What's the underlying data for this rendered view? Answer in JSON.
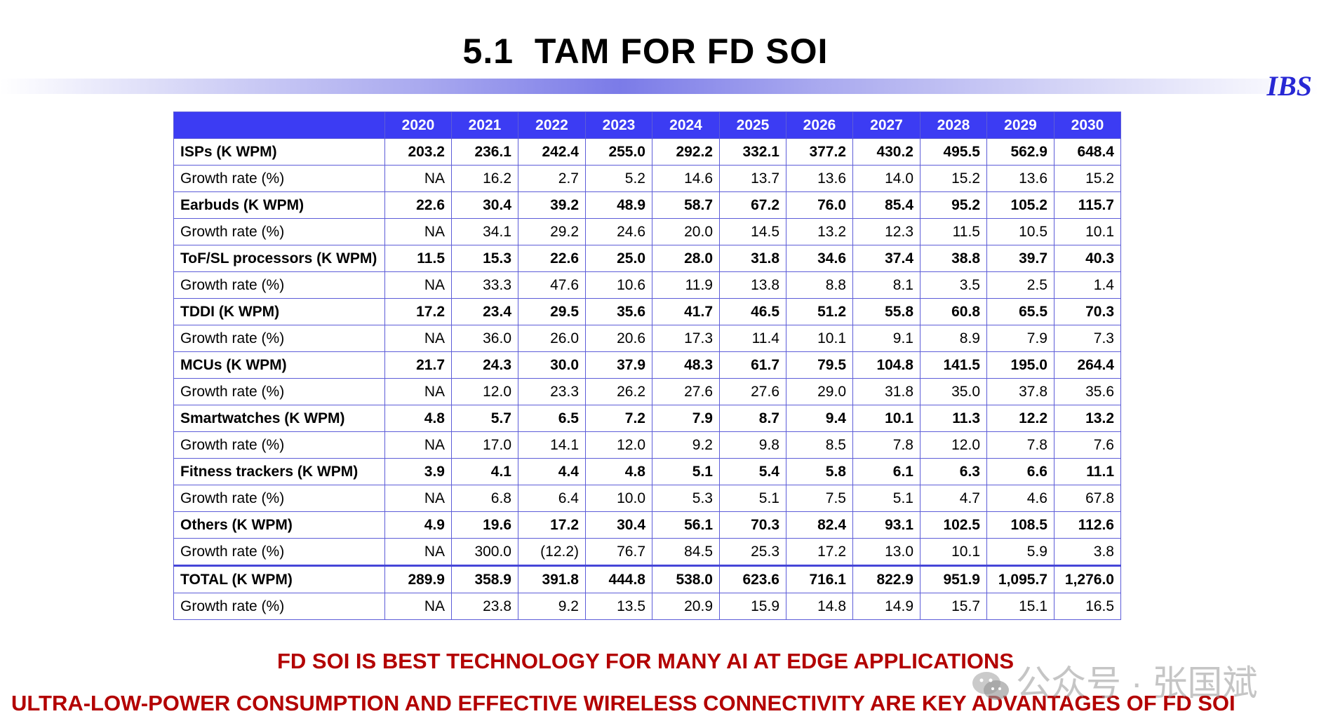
{
  "title": "5.1  TAM FOR FD SOI",
  "logo": "IBS",
  "table": {
    "years": [
      "2020",
      "2021",
      "2022",
      "2023",
      "2024",
      "2025",
      "2026",
      "2027",
      "2028",
      "2029",
      "2030"
    ],
    "rows": [
      {
        "label": "ISPs (K WPM)",
        "kind": "metric",
        "values": [
          "203.2",
          "236.1",
          "242.4",
          "255.0",
          "292.2",
          "332.1",
          "377.2",
          "430.2",
          "495.5",
          "562.9",
          "648.4"
        ]
      },
      {
        "label": "Growth rate (%)",
        "kind": "growth",
        "values": [
          "NA",
          "16.2",
          "2.7",
          "5.2",
          "14.6",
          "13.7",
          "13.6",
          "14.0",
          "15.2",
          "13.6",
          "15.2"
        ]
      },
      {
        "label": "Earbuds (K WPM)",
        "kind": "metric",
        "values": [
          "22.6",
          "30.4",
          "39.2",
          "48.9",
          "58.7",
          "67.2",
          "76.0",
          "85.4",
          "95.2",
          "105.2",
          "115.7"
        ]
      },
      {
        "label": "Growth rate (%)",
        "kind": "growth",
        "values": [
          "NA",
          "34.1",
          "29.2",
          "24.6",
          "20.0",
          "14.5",
          "13.2",
          "12.3",
          "11.5",
          "10.5",
          "10.1"
        ]
      },
      {
        "label": "ToF/SL processors (K WPM)",
        "kind": "metric",
        "values": [
          "11.5",
          "15.3",
          "22.6",
          "25.0",
          "28.0",
          "31.8",
          "34.6",
          "37.4",
          "38.8",
          "39.7",
          "40.3"
        ]
      },
      {
        "label": "Growth rate (%)",
        "kind": "growth",
        "values": [
          "NA",
          "33.3",
          "47.6",
          "10.6",
          "11.9",
          "13.8",
          "8.8",
          "8.1",
          "3.5",
          "2.5",
          "1.4"
        ]
      },
      {
        "label": "TDDI (K WPM)",
        "kind": "metric",
        "values": [
          "17.2",
          "23.4",
          "29.5",
          "35.6",
          "41.7",
          "46.5",
          "51.2",
          "55.8",
          "60.8",
          "65.5",
          "70.3"
        ]
      },
      {
        "label": "Growth rate (%)",
        "kind": "growth",
        "values": [
          "NA",
          "36.0",
          "26.0",
          "20.6",
          "17.3",
          "11.4",
          "10.1",
          "9.1",
          "8.9",
          "7.9",
          "7.3"
        ]
      },
      {
        "label": "MCUs (K WPM)",
        "kind": "metric",
        "values": [
          "21.7",
          "24.3",
          "30.0",
          "37.9",
          "48.3",
          "61.7",
          "79.5",
          "104.8",
          "141.5",
          "195.0",
          "264.4"
        ]
      },
      {
        "label": "Growth rate (%)",
        "kind": "growth",
        "values": [
          "NA",
          "12.0",
          "23.3",
          "26.2",
          "27.6",
          "27.6",
          "29.0",
          "31.8",
          "35.0",
          "37.8",
          "35.6"
        ]
      },
      {
        "label": "Smartwatches (K WPM)",
        "kind": "metric",
        "values": [
          "4.8",
          "5.7",
          "6.5",
          "7.2",
          "7.9",
          "8.7",
          "9.4",
          "10.1",
          "11.3",
          "12.2",
          "13.2"
        ]
      },
      {
        "label": "Growth rate (%)",
        "kind": "growth",
        "values": [
          "NA",
          "17.0",
          "14.1",
          "12.0",
          "9.2",
          "9.8",
          "8.5",
          "7.8",
          "12.0",
          "7.8",
          "7.6"
        ]
      },
      {
        "label": "Fitness trackers (K WPM)",
        "kind": "metric",
        "values": [
          "3.9",
          "4.1",
          "4.4",
          "4.8",
          "5.1",
          "5.4",
          "5.8",
          "6.1",
          "6.3",
          "6.6",
          "11.1"
        ]
      },
      {
        "label": "Growth rate (%)",
        "kind": "growth",
        "values": [
          "NA",
          "6.8",
          "6.4",
          "10.0",
          "5.3",
          "5.1",
          "7.5",
          "5.1",
          "4.7",
          "4.6",
          "67.8"
        ]
      },
      {
        "label": "Others (K WPM)",
        "kind": "metric",
        "values": [
          "4.9",
          "19.6",
          "17.2",
          "30.4",
          "56.1",
          "70.3",
          "82.4",
          "93.1",
          "102.5",
          "108.5",
          "112.6"
        ]
      },
      {
        "label": "Growth rate (%)",
        "kind": "growth",
        "values": [
          "NA",
          "300.0",
          "(12.2)",
          "76.7",
          "84.5",
          "25.3",
          "17.2",
          "13.0",
          "10.1",
          "5.9",
          "3.8"
        ]
      },
      {
        "label": "TOTAL (K WPM)",
        "kind": "total",
        "values": [
          "289.9",
          "358.9",
          "391.8",
          "444.8",
          "538.0",
          "623.6",
          "716.1",
          "822.9",
          "951.9",
          "1,095.7",
          "1,276.0"
        ]
      },
      {
        "label": "Growth rate (%)",
        "kind": "growth",
        "values": [
          "NA",
          "23.8",
          "9.2",
          "13.5",
          "20.9",
          "15.9",
          "14.8",
          "14.9",
          "15.7",
          "15.1",
          "16.5"
        ]
      }
    ]
  },
  "footer": {
    "line1": "FD SOI IS BEST TECHNOLOGY FOR MANY AI AT EDGE APPLICATIONS",
    "line2": "ULTRA-LOW-POWER CONSUMPTION AND EFFECTIVE WIRELESS CONNECTIVITY ARE KEY ADVANTAGES OF FD SOI"
  },
  "watermark": {
    "text": "公众号 · 张国斌",
    "icon": "wechat-icon"
  },
  "colors": {
    "header_bg": "#3c3cf3",
    "grid": "#5d5dd8",
    "footer_text": "#b30000",
    "logo": "#2727d4"
  }
}
